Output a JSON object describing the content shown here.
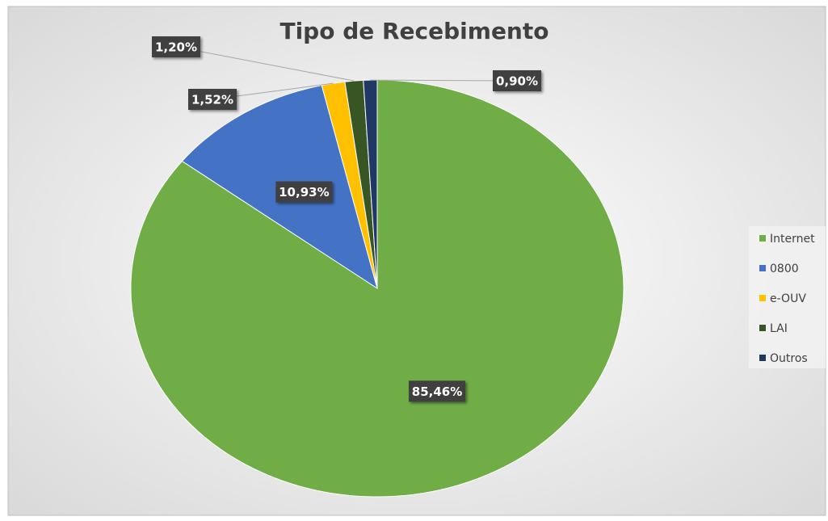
{
  "chart_data": {
    "type": "pie",
    "title": "Tipo de Recebimento",
    "categories": [
      "Internet",
      "0800",
      "e-OUV",
      "LAI",
      "Outros"
    ],
    "values": [
      85.46,
      10.93,
      1.52,
      1.2,
      0.9
    ],
    "value_labels": [
      "85,46%",
      "10,93%",
      "1,52%",
      "1,20%",
      "0,90%"
    ],
    "colors": [
      "#70ad47",
      "#4472c4",
      "#ffc000",
      "#375623",
      "#203864"
    ],
    "legend": "right"
  }
}
